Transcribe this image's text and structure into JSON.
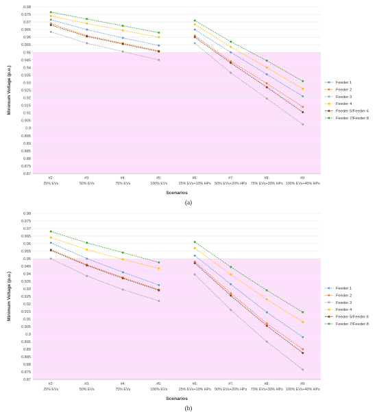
{
  "colors": {
    "band": "#fce0fc",
    "grid": "#e6e6e6",
    "axis": "#bdbdbd"
  },
  "legend": [
    {
      "label": "Feeder 1",
      "color": "#5b9bd5"
    },
    {
      "label": "Feeder 2",
      "color": "#ed7d31"
    },
    {
      "label": "Feeder 3",
      "color": "#a5a5a5"
    },
    {
      "label": "Feeder 4",
      "color": "#ffc000"
    },
    {
      "label": "Feeder 5/Feeder 6",
      "color": "#843c0c"
    },
    {
      "label": "Feeder 7/Feeder 8",
      "color": "#3aa835"
    }
  ],
  "chart_data": [
    {
      "type": "line",
      "sub_label": "(a)",
      "ylabel": "Minimum Voltage (p.u.)",
      "xlabel": "Scenarios",
      "ylim": [
        0.87,
        0.98
      ],
      "ystep": 0.005,
      "shaded_below": 0.95,
      "grid": "horizontal",
      "legend_position": "right",
      "categories": [
        {
          "top": "#2:",
          "bottom": "25% EVs"
        },
        {
          "top": "#3:",
          "bottom": "50% EVs"
        },
        {
          "top": "#4:",
          "bottom": "75% EVs"
        },
        {
          "top": "#5:",
          "bottom": "100% EVs"
        },
        {
          "top": "#6:",
          "bottom": "25% EVs+10% HPs"
        },
        {
          "top": "#7:",
          "bottom": "50% EVs+20% HPs"
        },
        {
          "top": "#8:",
          "bottom": "75% EVs+30% HPs"
        },
        {
          "top": "#9:",
          "bottom": "100% EVs+40% HPs"
        }
      ],
      "series": [
        {
          "name": "Feeder 1",
          "values": [
            0.9715,
            0.965,
            0.9595,
            0.9545,
            0.965,
            0.95,
            0.9355,
            0.921
          ]
        },
        {
          "name": "Feeder 2",
          "values": [
            0.969,
            0.961,
            0.956,
            0.951,
            0.961,
            0.944,
            0.9295,
            0.914
          ]
        },
        {
          "name": "Feeder 3",
          "values": [
            0.9635,
            0.956,
            0.9505,
            0.945,
            0.956,
            0.9365,
            0.9195,
            0.9025
          ]
        },
        {
          "name": "Feeder 4",
          "values": [
            0.974,
            0.969,
            0.9645,
            0.96,
            0.9685,
            0.9535,
            0.94,
            0.926
          ]
        },
        {
          "name": "Feeder 5/Feeder 6",
          "values": [
            0.968,
            0.9605,
            0.9555,
            0.9505,
            0.96,
            0.943,
            0.927,
            0.9105
          ]
        },
        {
          "name": "Feeder 7/Feeder 8",
          "values": [
            0.9765,
            0.972,
            0.9675,
            0.963,
            0.971,
            0.957,
            0.9445,
            0.931
          ]
        }
      ]
    },
    {
      "type": "line",
      "sub_label": "(b)",
      "ylabel": "Minimum Voltage (p.u.)",
      "xlabel": "Scenarios",
      "ylim": [
        0.87,
        0.98
      ],
      "ystep": 0.005,
      "shaded_below": 0.95,
      "grid": "horizontal",
      "legend_position": "right",
      "categories": [
        {
          "top": "#2:",
          "bottom": "25% EVs"
        },
        {
          "top": "#3:",
          "bottom": "50% EVs"
        },
        {
          "top": "#4:",
          "bottom": "75% EVs"
        },
        {
          "top": "#5:",
          "bottom": "100% EVs"
        },
        {
          "top": "#6:",
          "bottom": "25% EVs+10% HPs"
        },
        {
          "top": "#7:",
          "bottom": "50% EVs+20% HPs"
        },
        {
          "top": "#8:",
          "bottom": "75% EVs+30% HPs"
        },
        {
          "top": "#9:",
          "bottom": "100% EVs+40% HPs"
        }
      ],
      "series": [
        {
          "name": "Feeder 1",
          "values": [
            0.9605,
            0.95,
            0.941,
            0.9325,
            0.952,
            0.933,
            0.9145,
            0.898
          ]
        },
        {
          "name": "Feeder 2",
          "values": [
            0.956,
            0.946,
            0.9375,
            0.9295,
            0.948,
            0.927,
            0.907,
            0.89
          ]
        },
        {
          "name": "Feeder 3",
          "values": [
            0.95,
            0.9385,
            0.9295,
            0.922,
            0.9395,
            0.916,
            0.895,
            0.8765
          ]
        },
        {
          "name": "Feeder 4",
          "values": [
            0.964,
            0.956,
            0.9495,
            0.9435,
            0.957,
            0.9395,
            0.923,
            0.908
          ]
        },
        {
          "name": "Feeder 5/Feeder 6",
          "values": [
            0.9555,
            0.9455,
            0.937,
            0.929,
            0.947,
            0.9255,
            0.9055,
            0.8875
          ]
        },
        {
          "name": "Feeder 7/Feeder 8",
          "values": [
            0.968,
            0.9605,
            0.954,
            0.9475,
            0.961,
            0.9445,
            0.929,
            0.9145
          ]
        }
      ]
    }
  ]
}
